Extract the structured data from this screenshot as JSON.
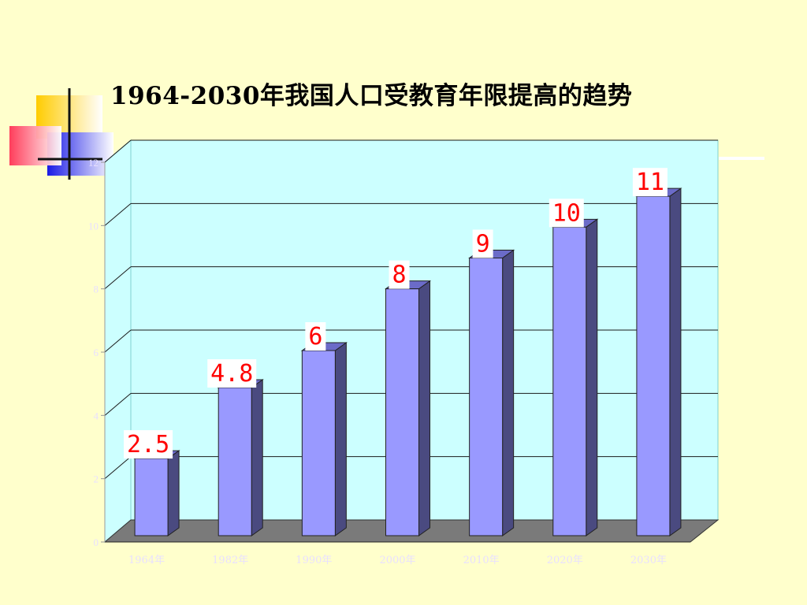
{
  "title": "1964-2030年我国人口受教育年限提高的趋势",
  "colors": {
    "background": "#FFFFCC",
    "plot_area": "#CCFFFF",
    "bar_front": "#9999FF",
    "bar_side": "#4A4A80",
    "floor": "#7A7A7A",
    "label": "#FF0000"
  },
  "chart_data": {
    "type": "bar",
    "title": "1964-2030年我国人口受教育年限提高的趋势",
    "categories": [
      "1964年",
      "1982年",
      "1990年",
      "2000年",
      "2010年",
      "2020年",
      "2030年"
    ],
    "series": [
      {
        "values": [
          2.5,
          4.8,
          6,
          8,
          9,
          10,
          11
        ]
      }
    ],
    "data_labels": [
      "2.5",
      "4.8",
      "6",
      "8",
      "9",
      "10",
      "11"
    ],
    "y_ticks": [
      "0",
      "2",
      "4",
      "6",
      "8",
      "10",
      "12"
    ],
    "ylim": [
      0,
      12
    ],
    "grid": true,
    "legend": "none",
    "style": "3d-column"
  }
}
